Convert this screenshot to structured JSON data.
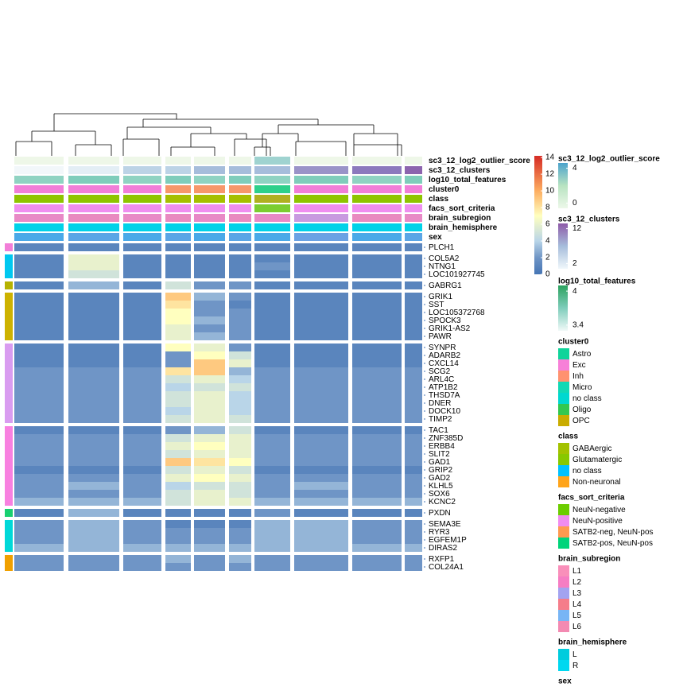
{
  "chart_data": {
    "type": "heatmap",
    "colorscale": {
      "lim": [
        0,
        14.2
      ],
      "ticks": [
        14,
        12,
        10,
        8,
        6,
        4,
        2,
        0
      ],
      "stops": [
        [
          0,
          "#4575b4"
        ],
        [
          2,
          "#6f95c6"
        ],
        [
          4,
          "#b9d5e8"
        ],
        [
          7,
          "#ffffbf"
        ],
        [
          10,
          "#fdae61"
        ],
        [
          14,
          "#d73027"
        ]
      ]
    },
    "annotations": [
      {
        "name": "sc3_12_log2_outlier_score",
        "colors": [
          "#eef7e8",
          "#eef7e8",
          "#eef7e8",
          "#eef7e8",
          "#eef7e8",
          "#eef7e8",
          "#9fd3d0",
          "#eef7e8",
          "#eef7e8",
          "#eef7e8"
        ]
      },
      {
        "name": "sc3_12_clusters",
        "colors": [
          "#f2f7fa",
          "#e3eef5",
          "#bcd3e6",
          "#bcd3e6",
          "#a6bddb",
          "#a6bddb",
          "#a6bddb",
          "#9a93c8",
          "#8c79bd",
          "#8c64ae"
        ]
      },
      {
        "name": "log10_total_features",
        "colors": [
          "#8fd3c2",
          "#7fcdbb",
          "#8fd3c2",
          "#7fcdbb",
          "#8fd3c2",
          "#7fcdbb",
          "#8fd3c2",
          "#7fcdbb",
          "#8fd3c2",
          "#7fcdbb"
        ]
      },
      {
        "name": "cluster0",
        "colors": [
          "#f17ed8",
          "#f17ed8",
          "#f17ed8",
          "#f7976a",
          "#f7976a",
          "#f7976a",
          "#2dd08a",
          "#f17ed8",
          "#f17ed8",
          "#f17ed8"
        ]
      },
      {
        "name": "class",
        "colors": [
          "#8fc400",
          "#8fc400",
          "#8fc400",
          "#a6bf00",
          "#a6bf00",
          "#a6bf00",
          "#b0b020",
          "#8fc400",
          "#8fc400",
          "#8fc400"
        ]
      },
      {
        "name": "facs_sort_criteria",
        "colors": [
          "#ef8ef0",
          "#ef8ef0",
          "#ef8ef0",
          "#ef8ef0",
          "#ef8ef0",
          "#ef8ef0",
          "#7ccd30",
          "#ef8ef0",
          "#ef8ef0",
          "#ef8ef0"
        ]
      },
      {
        "name": "brain_subregion",
        "colors": [
          "#e889c6",
          "#e98ac0",
          "#e889c6",
          "#e98ac0",
          "#e889c6",
          "#e98ac0",
          "#e889c6",
          "#c89ae0",
          "#e98ac0",
          "#e889c6"
        ]
      },
      {
        "name": "brain_hemisphere",
        "colors": [
          "#00d2e8",
          "#00d2e8",
          "#00d2e8",
          "#00d2e8",
          "#00d2e8",
          "#00d2e8",
          "#00d2e8",
          "#00d2e8",
          "#00d2e8",
          "#00d2e8"
        ]
      },
      {
        "name": "sex",
        "colors": [
          "#4aa9e8",
          "#5aa6e6",
          "#4aa9e8",
          "#5aa6e6",
          "#4aa9e8",
          "#5aa6e6",
          "#4aa9e8",
          "#6aa2e4",
          "#4aa9e8",
          "#5aa6e6"
        ]
      }
    ],
    "row_groups": [
      {
        "color": "#f27ed8",
        "genes": [
          "PLCH1"
        ],
        "values": [
          [
            1,
            1,
            1,
            1,
            1,
            1,
            1,
            1,
            1,
            1
          ]
        ]
      },
      {
        "color": "#00c8f0",
        "genes": [
          "COL5A2",
          "NTNG1",
          "LOC101927745"
        ],
        "values": [
          [
            1,
            6,
            1,
            1,
            1,
            1,
            1,
            1,
            1,
            1
          ],
          [
            1,
            6,
            1,
            1,
            1,
            1,
            2,
            1,
            1,
            1
          ],
          [
            1,
            5,
            1,
            1,
            1,
            1,
            1,
            1,
            1,
            1
          ]
        ]
      },
      {
        "color": "#b5b200",
        "genes": [
          "GABRG1"
        ],
        "values": [
          [
            1,
            3,
            1,
            5,
            2,
            2,
            1,
            1,
            1,
            1
          ]
        ]
      },
      {
        "color": "#cdb200",
        "genes": [
          "GRIK1",
          "SST",
          "LOC105372768",
          "SPOCK3",
          "GRIK1-AS2",
          "PAWR"
        ],
        "values": [
          [
            1,
            1,
            1,
            9,
            3,
            2,
            1,
            1,
            1,
            1
          ],
          [
            1,
            1,
            1,
            8,
            2,
            1,
            1,
            1,
            1,
            1
          ],
          [
            1,
            1,
            1,
            7,
            2,
            2,
            1,
            1,
            1,
            1
          ],
          [
            1,
            1,
            1,
            7,
            3,
            2,
            1,
            1,
            1,
            1
          ],
          [
            1,
            1,
            1,
            6,
            2,
            2,
            1,
            1,
            1,
            1
          ],
          [
            1,
            1,
            1,
            6,
            3,
            2,
            1,
            1,
            1,
            1
          ]
        ]
      },
      {
        "color": "#d99cf0",
        "genes": [
          "SYNPR",
          "ADARB2",
          "CXCL14",
          "SCG2",
          "ARL4C",
          "ATP1B2",
          "THSD7A",
          "DNER",
          "DOCK10",
          "TIMP2"
        ],
        "values": [
          [
            1,
            1,
            1,
            7,
            6,
            2,
            1,
            1,
            1,
            1
          ],
          [
            1,
            1,
            1,
            2,
            7,
            5,
            1,
            1,
            1,
            1
          ],
          [
            1,
            1,
            1,
            2,
            9,
            6,
            1,
            1,
            1,
            1
          ],
          [
            2,
            2,
            2,
            8,
            9,
            3,
            2,
            2,
            2,
            2
          ],
          [
            2,
            2,
            2,
            5,
            6,
            4,
            2,
            2,
            2,
            2
          ],
          [
            2,
            2,
            2,
            4,
            5,
            5,
            2,
            2,
            2,
            2
          ],
          [
            2,
            2,
            2,
            5,
            6,
            4,
            2,
            2,
            2,
            2
          ],
          [
            2,
            2,
            2,
            5,
            6,
            4,
            2,
            2,
            2,
            2
          ],
          [
            2,
            2,
            2,
            4,
            6,
            4,
            2,
            2,
            2,
            2
          ],
          [
            2,
            2,
            2,
            5,
            6,
            5,
            2,
            2,
            2,
            2
          ]
        ]
      },
      {
        "color": "#f880e0",
        "genes": [
          "TAC1",
          "ZNF385D",
          "ERBB4",
          "SLIT2",
          "GAD1",
          "GRIP2",
          "GAD2",
          "KLHL5",
          "SOX6",
          "KCNC2"
        ],
        "values": [
          [
            1,
            1,
            1,
            2,
            3,
            5,
            1,
            1,
            1,
            1
          ],
          [
            2,
            2,
            2,
            5,
            6,
            6,
            2,
            2,
            2,
            2
          ],
          [
            2,
            2,
            2,
            6,
            7,
            6,
            2,
            2,
            2,
            2
          ],
          [
            2,
            2,
            2,
            5,
            6,
            6,
            2,
            2,
            2,
            2
          ],
          [
            2,
            2,
            2,
            9,
            8,
            7,
            2,
            2,
            2,
            2
          ],
          [
            1,
            1,
            1,
            5,
            6,
            5,
            1,
            1,
            1,
            1
          ],
          [
            2,
            2,
            2,
            6,
            7,
            6,
            2,
            2,
            2,
            2
          ],
          [
            2,
            3,
            2,
            4,
            5,
            5,
            2,
            3,
            2,
            2
          ],
          [
            2,
            2,
            2,
            5,
            6,
            5,
            2,
            2,
            2,
            2
          ],
          [
            3,
            3,
            3,
            5,
            6,
            6,
            3,
            3,
            3,
            3
          ]
        ]
      },
      {
        "color": "#18d070",
        "genes": [
          "PXDN"
        ],
        "values": [
          [
            1,
            3,
            1,
            1,
            1,
            1,
            2,
            1,
            1,
            1
          ]
        ]
      },
      {
        "color": "#00d8d8",
        "genes": [
          "SEMA3E",
          "RYR3",
          "EGFEM1P",
          "DIRAS2"
        ],
        "values": [
          [
            2,
            3,
            2,
            1,
            1,
            1,
            3,
            3,
            2,
            2
          ],
          [
            2,
            3,
            2,
            2,
            2,
            2,
            3,
            3,
            2,
            2
          ],
          [
            2,
            3,
            2,
            2,
            2,
            2,
            3,
            3,
            2,
            2
          ],
          [
            3,
            3,
            3,
            3,
            3,
            3,
            3,
            3,
            3,
            3
          ]
        ]
      },
      {
        "color": "#f0a000",
        "genes": [
          "RXFP1",
          "COL24A1"
        ],
        "values": [
          [
            2,
            2,
            2,
            3,
            2,
            3,
            2,
            2,
            2,
            2
          ],
          [
            2,
            2,
            2,
            2,
            2,
            2,
            2,
            2,
            2,
            2
          ]
        ]
      }
    ],
    "legends": [
      {
        "title": "sc3_12_log2_outlier_score",
        "lim": [
          -0.6,
          4.6
        ],
        "ticks": [
          4,
          0
        ],
        "colors": [
          "#4ba3cc",
          "#b8e3c1",
          "#edf8e9"
        ]
      },
      {
        "title": "sc3_12_clusters",
        "lim": [
          0.5,
          13.5
        ],
        "ticks": [
          12,
          2
        ],
        "colors": [
          "#8e5aa8",
          "#a6bddb",
          "#f0f7fb"
        ]
      },
      {
        "title": "log10_total_features",
        "lim": [
          3.3,
          4.1
        ],
        "ticks": [
          4,
          3.4
        ],
        "colors": [
          "#2ca25f",
          "#7fcdbb",
          "#f0f9f8"
        ]
      },
      {
        "title": "cluster0",
        "entries": [
          {
            "label": "Astro",
            "color": "#10d49a"
          },
          {
            "label": "Exc",
            "color": "#f780d8"
          },
          {
            "label": "Inh",
            "color": "#ff9270"
          },
          {
            "label": "Micro",
            "color": "#11d9b5"
          },
          {
            "label": "no class",
            "color": "#00d8d0"
          },
          {
            "label": "Oligo",
            "color": "#32c850"
          },
          {
            "label": "OPC",
            "color": "#c9ac00"
          }
        ]
      },
      {
        "title": "class",
        "entries": [
          {
            "label": "GABAergic",
            "color": "#a3c200"
          },
          {
            "label": "Glutamatergic",
            "color": "#88c800"
          },
          {
            "label": "no class",
            "color": "#00c1ff"
          },
          {
            "label": "Non-neuronal",
            "color": "#ffa41a"
          }
        ]
      },
      {
        "title": "facs_sort_criteria",
        "entries": [
          {
            "label": "NeuN-negative",
            "color": "#6ccd00"
          },
          {
            "label": "NeuN-positive",
            "color": "#f08cf0"
          },
          {
            "label": "SATB2-neg, NeuN-pos",
            "color": "#ff9a50"
          },
          {
            "label": "SATB2-pos, NeuN-pos",
            "color": "#00d47a"
          }
        ]
      },
      {
        "title": "brain_subregion",
        "entries": [
          {
            "label": "L1",
            "color": "#f98fba"
          },
          {
            "label": "L2",
            "color": "#f67dc3"
          },
          {
            "label": "L3",
            "color": "#a3a3f0"
          },
          {
            "label": "L4",
            "color": "#f57d8a"
          },
          {
            "label": "L5",
            "color": "#78b5f5"
          },
          {
            "label": "L6",
            "color": "#f38ab2"
          }
        ]
      },
      {
        "title": "brain_hemisphere",
        "entries": [
          {
            "label": "L",
            "color": "#00ccdd"
          },
          {
            "label": "R",
            "color": "#00d8f0"
          }
        ]
      },
      {
        "title": "sex",
        "entries": []
      }
    ]
  }
}
